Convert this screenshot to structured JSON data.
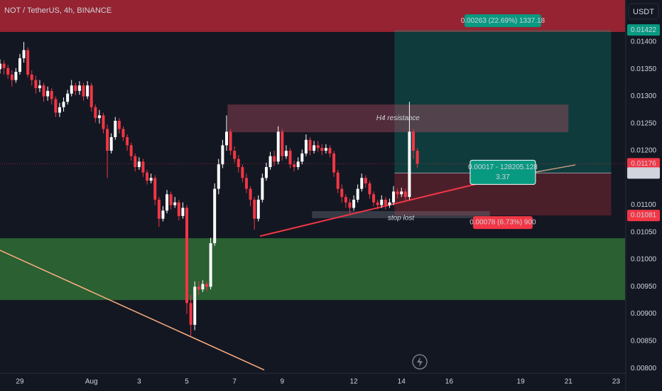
{
  "chart_data": {
    "type": "candlestick",
    "title": "NOT / TetherUS, 4h, BINANCE",
    "currency": "USDT",
    "up_color": "#ffffff",
    "down_color": "#f23645",
    "x": [
      -20,
      -16,
      -12,
      -8,
      -4,
      0,
      4,
      8,
      12,
      16,
      20,
      24,
      28,
      32,
      36,
      40,
      44,
      48,
      52,
      56,
      60,
      64,
      68,
      72,
      76,
      80,
      84,
      88,
      92,
      96,
      100,
      104,
      108,
      112,
      116,
      120,
      124,
      128,
      132,
      136,
      140,
      144,
      148,
      152,
      156,
      160,
      164,
      168,
      172,
      176,
      180,
      184,
      188,
      192,
      196,
      200,
      204,
      208,
      212,
      216,
      220,
      224,
      228,
      232,
      236,
      240,
      244,
      248,
      252,
      256,
      260,
      264,
      268,
      272,
      276,
      280,
      284,
      288,
      292,
      296,
      300,
      304,
      308,
      312,
      316,
      320,
      324,
      328,
      332,
      336,
      340,
      344,
      348,
      352,
      356,
      360,
      364,
      368,
      372,
      376,
      380,
      384,
      388,
      392,
      396,
      400
    ],
    "open": [
      0.0135,
      0.0136,
      0.01352,
      0.0134,
      0.0133,
      0.01345,
      0.0137,
      0.01385,
      0.0134,
      0.0133,
      0.01315,
      0.0132,
      0.013,
      0.0131,
      0.01295,
      0.0127,
      0.0128,
      0.0129,
      0.01305,
      0.0132,
      0.0131,
      0.0132,
      0.013,
      0.0132,
      0.0128,
      0.0126,
      0.01265,
      0.0124,
      0.012,
      0.01225,
      0.01255,
      0.0124,
      0.01225,
      0.0121,
      0.0119,
      0.0117,
      0.0118,
      0.0116,
      0.01145,
      0.0115,
      0.0111,
      0.01075,
      0.0109,
      0.0112,
      0.011,
      0.01105,
      0.0108,
      0.01095,
      0.0092,
      0.0088,
      0.0095,
      0.00945,
      0.00955,
      0.0095,
      0.0103,
      0.0113,
      0.01175,
      0.0121,
      0.01235,
      0.012,
      0.01185,
      0.0117,
      0.0115,
      0.0113,
      0.0111,
      0.01075,
      0.0111,
      0.0115,
      0.0117,
      0.0119,
      0.0118,
      0.01235,
      0.0119,
      0.012,
      0.01175,
      0.0117,
      0.0118,
      0.01195,
      0.0122,
      0.012,
      0.0121,
      0.01205,
      0.012,
      0.01205,
      0.01195,
      0.0116,
      0.0113,
      0.01115,
      0.01105,
      0.01095,
      0.0111,
      0.0113,
      0.0115,
      0.0114,
      0.0112,
      0.01105,
      0.011,
      0.0111,
      0.011,
      0.01105,
      0.01125,
      0.0112,
      0.01125,
      0.01115,
      0.01235,
      0.012
    ],
    "high": [
      0.01368,
      0.01366,
      0.01358,
      0.01348,
      0.01352,
      0.01378,
      0.014,
      0.0139,
      0.01348,
      0.01338,
      0.0133,
      0.01325,
      0.01318,
      0.01315,
      0.013,
      0.01288,
      0.01298,
      0.01312,
      0.0133,
      0.01325,
      0.01328,
      0.01325,
      0.01328,
      0.01325,
      0.01285,
      0.01275,
      0.0127,
      0.01248,
      0.01232,
      0.01262,
      0.0126,
      0.01245,
      0.0123,
      0.01215,
      0.01195,
      0.01188,
      0.01185,
      0.01165,
      0.01158,
      0.01155,
      0.01115,
      0.01098,
      0.01128,
      0.01125,
      0.01115,
      0.0111,
      0.01105,
      0.011,
      0.00935,
      0.0096,
      0.0096,
      0.00962,
      0.0096,
      0.0104,
      0.0114,
      0.01185,
      0.0122,
      0.01265,
      0.0124,
      0.01208,
      0.01192,
      0.01175,
      0.01158,
      0.01135,
      0.01115,
      0.01118,
      0.01158,
      0.01178,
      0.01198,
      0.012,
      0.01245,
      0.0124,
      0.0121,
      0.01205,
      0.01182,
      0.01188,
      0.01202,
      0.0123,
      0.01225,
      0.01218,
      0.01218,
      0.01212,
      0.01212,
      0.0121,
      0.012,
      0.01165,
      0.01138,
      0.0112,
      0.01112,
      0.01118,
      0.01138,
      0.01158,
      0.01155,
      0.01145,
      0.01125,
      0.0111,
      0.01118,
      0.01115,
      0.01112,
      0.01135,
      0.0113,
      0.01132,
      0.0113,
      0.0129,
      0.0124,
      0.01205
    ],
    "low": [
      0.01342,
      0.0134,
      0.01332,
      0.01318,
      0.01325,
      0.0134,
      0.01362,
      0.01335,
      0.0132,
      0.01305,
      0.01308,
      0.0129,
      0.01292,
      0.01285,
      0.01262,
      0.01262,
      0.01272,
      0.01285,
      0.013,
      0.01302,
      0.01303,
      0.01292,
      0.01295,
      0.01272,
      0.01252,
      0.0125,
      0.01232,
      0.0115,
      0.01195,
      0.0122,
      0.01232,
      0.01218,
      0.012,
      0.01182,
      0.01162,
      0.01165,
      0.01152,
      0.01138,
      0.0114,
      0.011,
      0.0106,
      0.0107,
      0.01085,
      0.01092,
      0.01095,
      0.01072,
      0.01075,
      0.009,
      0.0086,
      0.0087,
      0.00935,
      0.0094,
      0.00942,
      0.00945,
      0.01025,
      0.0112,
      0.01168,
      0.012,
      0.01192,
      0.01178,
      0.0116,
      0.01142,
      0.01122,
      0.01098,
      0.01055,
      0.0107,
      0.01105,
      0.01145,
      0.01165,
      0.01172,
      0.01175,
      0.01182,
      0.01185,
      0.01168,
      0.01162,
      0.01165,
      0.01175,
      0.0119,
      0.01192,
      0.01195,
      0.01198,
      0.01192,
      0.01195,
      0.01188,
      0.01152,
      0.01122,
      0.01105,
      0.01095,
      0.01085,
      0.0109,
      0.01105,
      0.01125,
      0.01132,
      0.01112,
      0.01098,
      0.01092,
      0.01095,
      0.01092,
      0.01095,
      0.011,
      0.01112,
      0.01115,
      0.01108,
      0.0111,
      0.01185,
      0.01168
    ],
    "close": [
      0.0136,
      0.01352,
      0.0134,
      0.0133,
      0.01345,
      0.0137,
      0.01385,
      0.0134,
      0.0133,
      0.01315,
      0.0132,
      0.013,
      0.0131,
      0.01295,
      0.0127,
      0.0128,
      0.0129,
      0.01305,
      0.0132,
      0.0131,
      0.0132,
      0.013,
      0.0132,
      0.0128,
      0.0126,
      0.01265,
      0.0124,
      0.012,
      0.01225,
      0.01255,
      0.0124,
      0.01225,
      0.0121,
      0.0119,
      0.0117,
      0.0118,
      0.0116,
      0.01145,
      0.0115,
      0.0111,
      0.01075,
      0.0109,
      0.0112,
      0.011,
      0.01105,
      0.0108,
      0.01095,
      0.0092,
      0.0088,
      0.0095,
      0.00945,
      0.00955,
      0.0095,
      0.0103,
      0.0113,
      0.01175,
      0.0121,
      0.01235,
      0.012,
      0.01185,
      0.0117,
      0.0115,
      0.0113,
      0.0111,
      0.01075,
      0.0111,
      0.0115,
      0.0117,
      0.0119,
      0.0118,
      0.01235,
      0.0119,
      0.012,
      0.01175,
      0.0117,
      0.0118,
      0.01195,
      0.0122,
      0.012,
      0.0121,
      0.01205,
      0.012,
      0.01205,
      0.01195,
      0.0116,
      0.0113,
      0.01115,
      0.01105,
      0.01095,
      0.0111,
      0.0113,
      0.0115,
      0.0114,
      0.0112,
      0.01105,
      0.011,
      0.0111,
      0.011,
      0.01105,
      0.01125,
      0.0112,
      0.01125,
      0.01115,
      0.01235,
      0.012,
      0.01176
    ],
    "xlim": [
      -20,
      609
    ],
    "xticks": [
      {
        "value": 0,
        "label": "29"
      },
      {
        "value": 72,
        "label": "Aug"
      },
      {
        "value": 120,
        "label": "3"
      },
      {
        "value": 168,
        "label": "5"
      },
      {
        "value": 216,
        "label": "7"
      },
      {
        "value": 264,
        "label": "9"
      },
      {
        "value": 336,
        "label": "12"
      },
      {
        "value": 384,
        "label": "14"
      },
      {
        "value": 432,
        "label": "16"
      },
      {
        "value": 504,
        "label": "19"
      },
      {
        "value": 552,
        "label": "21"
      },
      {
        "value": 600,
        "label": "23"
      }
    ],
    "ylim": [
      0.00791,
      0.014771
    ],
    "yticks": [
      {
        "value": 0.014,
        "label": "0.01400"
      },
      {
        "value": 0.0135,
        "label": "0.01350"
      },
      {
        "value": 0.013,
        "label": "0.01300"
      },
      {
        "value": 0.0125,
        "label": "0.01250"
      },
      {
        "value": 0.012,
        "label": "0.01200"
      },
      {
        "value": 0.011,
        "label": "0.01100"
      },
      {
        "value": 0.0105,
        "label": "0.01050"
      },
      {
        "value": 0.01,
        "label": "0.01000"
      },
      {
        "value": 0.0095,
        "label": "0.00950"
      },
      {
        "value": 0.009,
        "label": "0.00900"
      },
      {
        "value": 0.0085,
        "label": "0.00850"
      },
      {
        "value": 0.008,
        "label": "0.00800"
      }
    ],
    "zones": [
      {
        "top": 0.014771,
        "bottom": 0.014183,
        "color": "rgba(200,40,55,0.72)"
      },
      {
        "top": 0.010392,
        "bottom": 0.009255,
        "color": "rgba(56,142,60,0.62)"
      }
    ],
    "boxes": [
      {
        "x": [
          209,
          552
        ],
        "top": 0.01285,
        "bottom": 0.01234,
        "color": "rgba(190,80,100,0.38)",
        "label": "H4 resistance"
      },
      {
        "x": [
          294,
          473
        ],
        "top": 0.01089,
        "bottom": 0.01076,
        "color": "rgba(120,123,134,0.35)",
        "label": "stop lost"
      }
    ],
    "position": {
      "x": [
        377,
        595
      ],
      "entry": 0.01159,
      "target": 0.01422,
      "stop": 0.01081,
      "target_label": "0.00263 (22.69%) 1337.18",
      "entry_label": [
        "0.00017 - 128205.128",
        "3.37"
      ],
      "stop_label": "0.00078 (6.73%) 900"
    },
    "lines": [
      {
        "points": [
          [
            241.6,
            0.01043
          ],
          [
            480.3,
            0.01148
          ]
        ],
        "color": "#f23645",
        "width": 2
      },
      {
        "points": [
          [
            480.3,
            0.01148
          ],
          [
            559,
            0.01174
          ]
        ],
        "color": "#c99a86",
        "width": 1.5
      },
      {
        "points": [
          [
            -20,
            0.01017
          ],
          [
            245.9,
            0.00797
          ]
        ],
        "color": "#ffad80",
        "width": 1.5
      }
    ],
    "price_labels": [
      {
        "value": 0.01422,
        "label": "0.01422",
        "color": "#089981"
      },
      {
        "value": 0.01176,
        "label": "0.01176",
        "sublabel": "01:55:43",
        "color": "#f23645",
        "line": true
      },
      {
        "value": 0.01159,
        "label": "0.01159",
        "color": "#d1d4dc"
      },
      {
        "value": 0.01081,
        "label": "0.01081",
        "color": "#f23645"
      }
    ]
  }
}
